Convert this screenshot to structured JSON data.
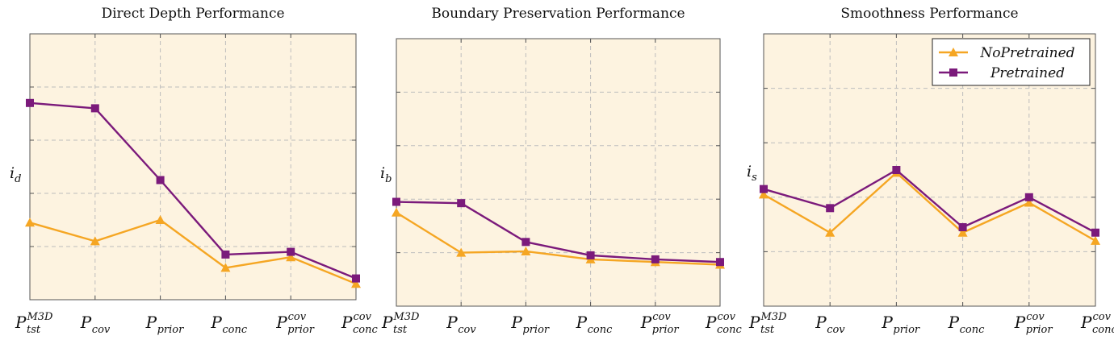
{
  "figure": {
    "panels": [
      {
        "id": "depth",
        "title": "Direct Depth Performance",
        "ylabel": "i",
        "ylabel_sub": "d"
      },
      {
        "id": "boundary",
        "title": "Boundary Preservation Performance",
        "ylabel": "i",
        "ylabel_sub": "b"
      },
      {
        "id": "smooth",
        "title": "Smoothness Performance",
        "ylabel": "i",
        "ylabel_sub": "s"
      }
    ],
    "xticks": [
      {
        "base": "P",
        "sub": "tst",
        "sup": "M3D"
      },
      {
        "base": "P",
        "sub": "cov",
        "sup": ""
      },
      {
        "base": "P",
        "sub": "prior",
        "sup": ""
      },
      {
        "base": "P",
        "sub": "conc",
        "sup": ""
      },
      {
        "base": "P",
        "sub": "prior",
        "sup": "cov"
      },
      {
        "base": "P",
        "sub": "conc",
        "sup": "cov"
      }
    ],
    "legend": {
      "position": "top-right",
      "entries": [
        {
          "label": "NoPretrained",
          "color": "#f5a623",
          "marker": "triangle"
        },
        {
          "label": "Pretrained",
          "color": "#7b1a7b",
          "marker": "square"
        }
      ]
    },
    "colors": {
      "plot_bg": "#fdf3e0",
      "grid": "#bdbdbd",
      "axis": "#555555"
    }
  },
  "chart_data": [
    {
      "type": "line",
      "title": "Direct Depth Performance",
      "ylabel": "i_d",
      "categories": [
        "P_tst^M3D",
        "P_cov",
        "P_prior",
        "P_conc",
        "P_prior^cov",
        "P_conc^cov"
      ],
      "ylim": [
        0,
        1
      ],
      "grid": true,
      "series": [
        {
          "name": "NoPretrained",
          "values": [
            0.29,
            0.22,
            0.3,
            0.12,
            0.16,
            0.06
          ]
        },
        {
          "name": "Pretrained",
          "values": [
            0.74,
            0.72,
            0.45,
            0.17,
            0.18,
            0.08
          ]
        }
      ]
    },
    {
      "type": "line",
      "title": "Boundary Preservation Performance",
      "ylabel": "i_b",
      "categories": [
        "P_tst^M3D",
        "P_cov",
        "P_prior",
        "P_conc",
        "P_prior^cov",
        "P_conc^cov"
      ],
      "ylim": [
        0,
        1
      ],
      "grid": true,
      "series": [
        {
          "name": "NoPretrained",
          "values": [
            0.35,
            0.2,
            0.205,
            0.175,
            0.165,
            0.155
          ]
        },
        {
          "name": "Pretrained",
          "values": [
            0.39,
            0.385,
            0.24,
            0.19,
            0.175,
            0.165
          ]
        }
      ]
    },
    {
      "type": "line",
      "title": "Smoothness Performance",
      "ylabel": "i_s",
      "categories": [
        "P_tst^M3D",
        "P_cov",
        "P_prior",
        "P_conc",
        "P_prior^cov",
        "P_conc^cov"
      ],
      "ylim": [
        0,
        1
      ],
      "grid": true,
      "legend": "top-right",
      "series": [
        {
          "name": "NoPretrained",
          "values": [
            0.41,
            0.27,
            0.49,
            0.27,
            0.38,
            0.24
          ]
        },
        {
          "name": "Pretrained",
          "values": [
            0.43,
            0.36,
            0.5,
            0.29,
            0.4,
            0.27
          ]
        }
      ]
    }
  ]
}
